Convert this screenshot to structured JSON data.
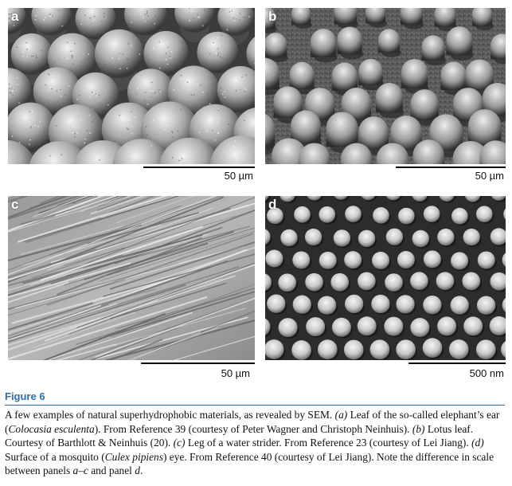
{
  "figure": {
    "title": "Figure 6",
    "caption": [
      {
        "t": "A few examples of natural superhydrophobic materials, as revealed by SEM. "
      },
      {
        "t": "(a)",
        "i": true
      },
      {
        "t": " Leaf of the so-called elephant’s ear ("
      },
      {
        "t": "Colocasia esculenta",
        "i": true
      },
      {
        "t": "). From Reference 39 (courtesy of Peter Wagner and Christoph Neinhuis). "
      },
      {
        "t": "(b)",
        "i": true
      },
      {
        "t": " Lotus leaf. Courtesy of Barthlott & Neinhuis (20). "
      },
      {
        "t": "(c)",
        "i": true
      },
      {
        "t": " Leg of a water strider. From Reference 23 (courtesy of Lei Jiang). "
      },
      {
        "t": "(d)",
        "i": true
      },
      {
        "t": " Surface of a mosquito ("
      },
      {
        "t": "Culex pipiens",
        "i": true
      },
      {
        "t": ") eye. From Reference 40 (courtesy of Lei Jiang). Note the difference in scale between panels "
      },
      {
        "t": "a–c",
        "i": true
      },
      {
        "t": " and panel "
      },
      {
        "t": "d",
        "i": true
      },
      {
        "t": "."
      }
    ]
  },
  "panels": {
    "a": {
      "label": "a",
      "scale": "50 µm"
    },
    "b": {
      "label": "b",
      "scale": "50 µm"
    },
    "c": {
      "label": "c",
      "scale": "50 µm"
    },
    "d": {
      "label": "d",
      "scale": "500 nm"
    }
  },
  "colors": {
    "title": "#2f6ea3"
  }
}
